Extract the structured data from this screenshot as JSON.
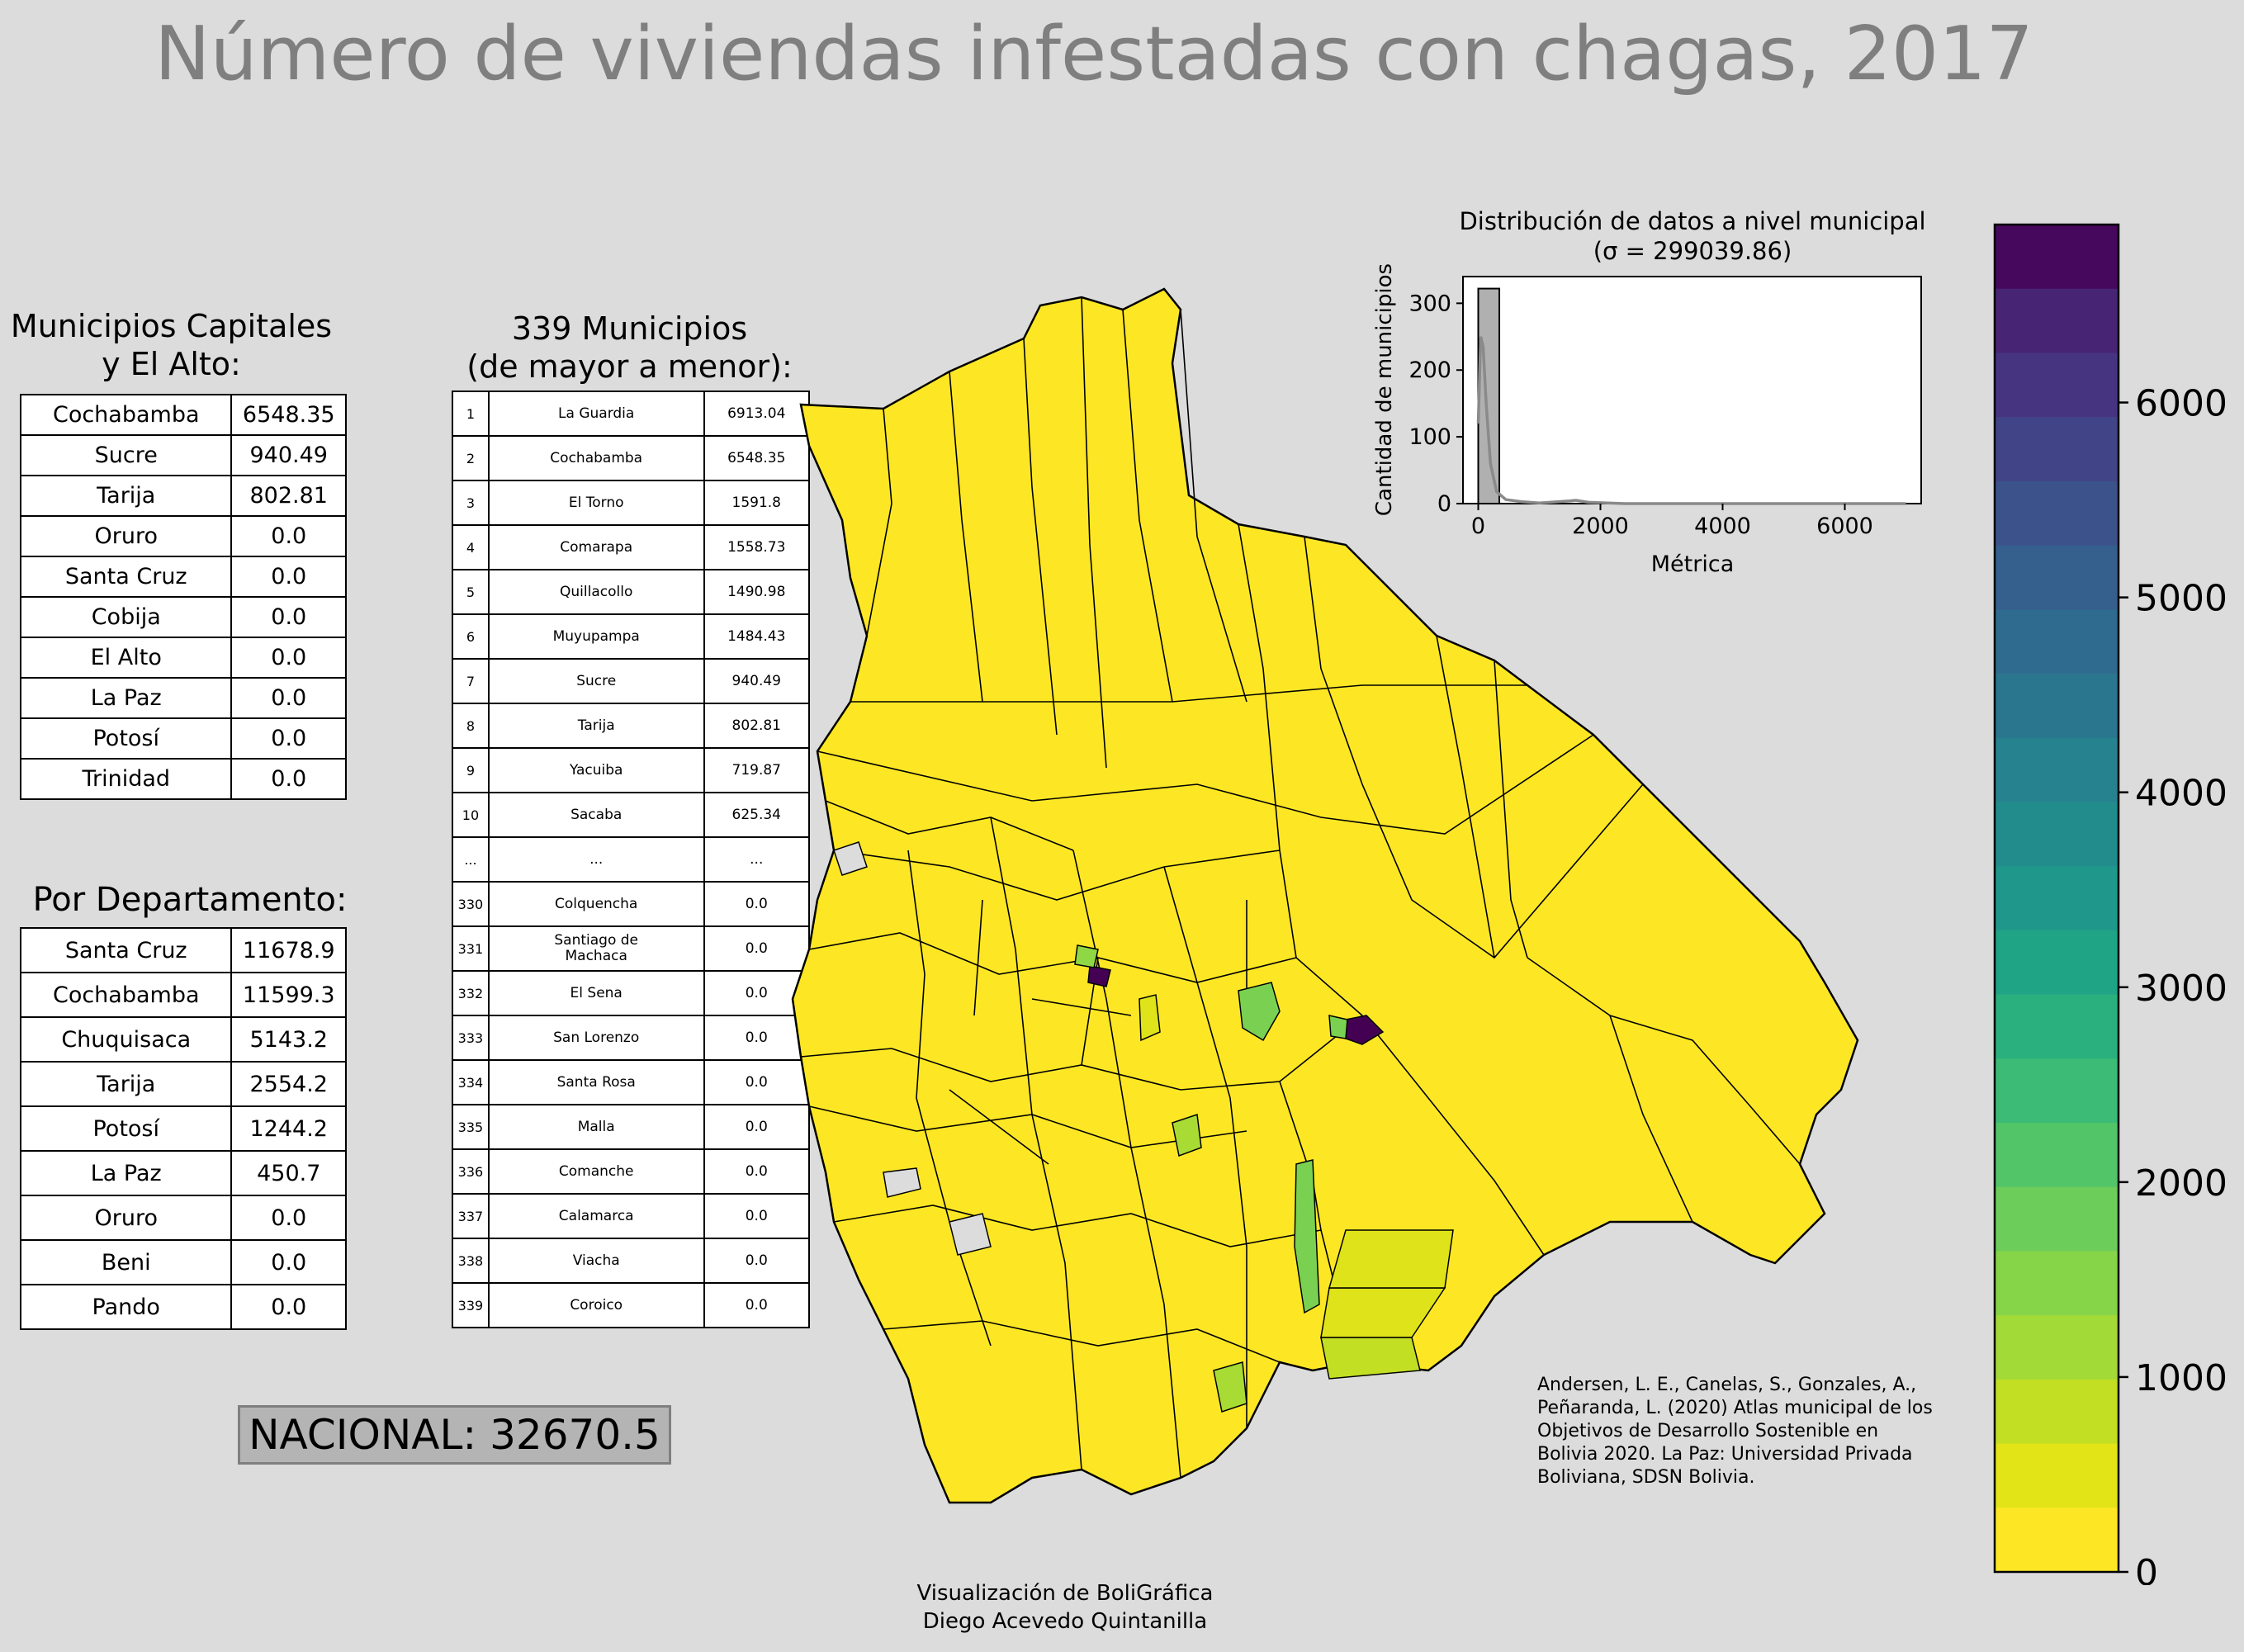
{
  "title": "Número de viviendas infestadas con chagas, 2017",
  "capitals": {
    "title": "Municipios Capitales\ny El Alto:",
    "rows": [
      {
        "name": "Cochabamba",
        "value": "6548.35"
      },
      {
        "name": "Sucre",
        "value": "940.49"
      },
      {
        "name": "Tarija",
        "value": "802.81"
      },
      {
        "name": "Oruro",
        "value": "0.0"
      },
      {
        "name": "Santa Cruz",
        "value": "0.0"
      },
      {
        "name": "Cobija",
        "value": "0.0"
      },
      {
        "name": "El Alto",
        "value": "0.0"
      },
      {
        "name": "La Paz",
        "value": "0.0"
      },
      {
        "name": "Potosí",
        "value": "0.0"
      },
      {
        "name": "Trinidad",
        "value": "0.0"
      }
    ]
  },
  "departments": {
    "title": "Por Departamento:",
    "rows": [
      {
        "name": "Santa Cruz",
        "value": "11678.9"
      },
      {
        "name": "Cochabamba",
        "value": "11599.3"
      },
      {
        "name": "Chuquisaca",
        "value": "5143.2"
      },
      {
        "name": "Tarija",
        "value": "2554.2"
      },
      {
        "name": "Potosí",
        "value": "1244.2"
      },
      {
        "name": "La Paz",
        "value": "450.7"
      },
      {
        "name": "Oruro",
        "value": "0.0"
      },
      {
        "name": "Beni",
        "value": "0.0"
      },
      {
        "name": "Pando",
        "value": "0.0"
      }
    ]
  },
  "municipalities": {
    "title": "339 Municipios\n(de mayor a menor):",
    "rows": [
      {
        "rank": "1",
        "name": "La Guardia",
        "value": "6913.04"
      },
      {
        "rank": "2",
        "name": "Cochabamba",
        "value": "6548.35"
      },
      {
        "rank": "3",
        "name": "El Torno",
        "value": "1591.8"
      },
      {
        "rank": "4",
        "name": "Comarapa",
        "value": "1558.73"
      },
      {
        "rank": "5",
        "name": "Quillacollo",
        "value": "1490.98"
      },
      {
        "rank": "6",
        "name": "Muyupampa",
        "value": "1484.43"
      },
      {
        "rank": "7",
        "name": "Sucre",
        "value": "940.49"
      },
      {
        "rank": "8",
        "name": "Tarija",
        "value": "802.81"
      },
      {
        "rank": "9",
        "name": "Yacuiba",
        "value": "719.87"
      },
      {
        "rank": "10",
        "name": "Sacaba",
        "value": "625.34"
      },
      {
        "rank": "...",
        "name": "...",
        "value": "..."
      },
      {
        "rank": "330",
        "name": "Colquencha",
        "value": "0.0"
      },
      {
        "rank": "331",
        "name": "Santiago de\nMachaca",
        "value": "0.0"
      },
      {
        "rank": "332",
        "name": "El Sena",
        "value": "0.0"
      },
      {
        "rank": "333",
        "name": "San Lorenzo",
        "value": "0.0"
      },
      {
        "rank": "334",
        "name": "Santa Rosa",
        "value": "0.0"
      },
      {
        "rank": "335",
        "name": "Malla",
        "value": "0.0"
      },
      {
        "rank": "336",
        "name": "Comanche",
        "value": "0.0"
      },
      {
        "rank": "337",
        "name": "Calamarca",
        "value": "0.0"
      },
      {
        "rank": "338",
        "name": "Viacha",
        "value": "0.0"
      },
      {
        "rank": "339",
        "name": "Coroico",
        "value": "0.0"
      }
    ]
  },
  "national": "NACIONAL: 32670.5",
  "chart_data": [
    {
      "type": "histogram",
      "title": "Distribución de datos a nivel municipal\n(σ = 299039.86)",
      "xlabel": "Métrica",
      "ylabel": "Cantidad de municipios",
      "xlim": [
        -250,
        7250
      ],
      "ylim": [
        0,
        340
      ],
      "xticks": [
        0,
        2000,
        4000,
        6000
      ],
      "yticks": [
        0,
        100,
        200,
        300
      ],
      "bins": [
        {
          "from": 0,
          "to": 345,
          "count": 322
        }
      ],
      "kde": [
        [
          0,
          120
        ],
        [
          40,
          250
        ],
        [
          80,
          235
        ],
        [
          130,
          150
        ],
        [
          200,
          60
        ],
        [
          300,
          18
        ],
        [
          450,
          6
        ],
        [
          700,
          3
        ],
        [
          1000,
          1
        ],
        [
          1500,
          4
        ],
        [
          1600,
          5
        ],
        [
          1800,
          2
        ],
        [
          2400,
          0
        ],
        [
          7000,
          0
        ]
      ],
      "bar_color": "#b0b0b0",
      "line_color": "#8a8a8a"
    },
    {
      "type": "colorbar",
      "range": [
        0,
        6913.04
      ],
      "ticks": [
        0,
        1000,
        2000,
        3000,
        4000,
        5000,
        6000
      ],
      "colors": [
        "#fde725",
        "#e2e418",
        "#c2df23",
        "#a2da37",
        "#86d549",
        "#6ccd5a",
        "#52c569",
        "#3bbb75",
        "#2ab07f",
        "#20a486",
        "#1f988b",
        "#228c8d",
        "#26828e",
        "#2a768e",
        "#2f6b8e",
        "#355f8d",
        "#3b528b",
        "#414487",
        "#463480",
        "#482475",
        "#46085c"
      ]
    }
  ],
  "map_legend_colors": {
    "zero": "#fde725",
    "low": "#d7e219",
    "mid": "#8fd744",
    "high": "#7ad151",
    "max": "#440154",
    "border": "#000000"
  },
  "citation": "Andersen, L. E., Canelas, S., Gonzales, A., Peñaranda, L. (2020) Atlas municipal de los Objetivos de Desarrollo Sostenible en Bolivia 2020. La Paz: Universidad Privada Boliviana, SDSN Bolivia.",
  "credits": "Visualización de BoliGráfica\nDiego Acevedo Quintanilla"
}
